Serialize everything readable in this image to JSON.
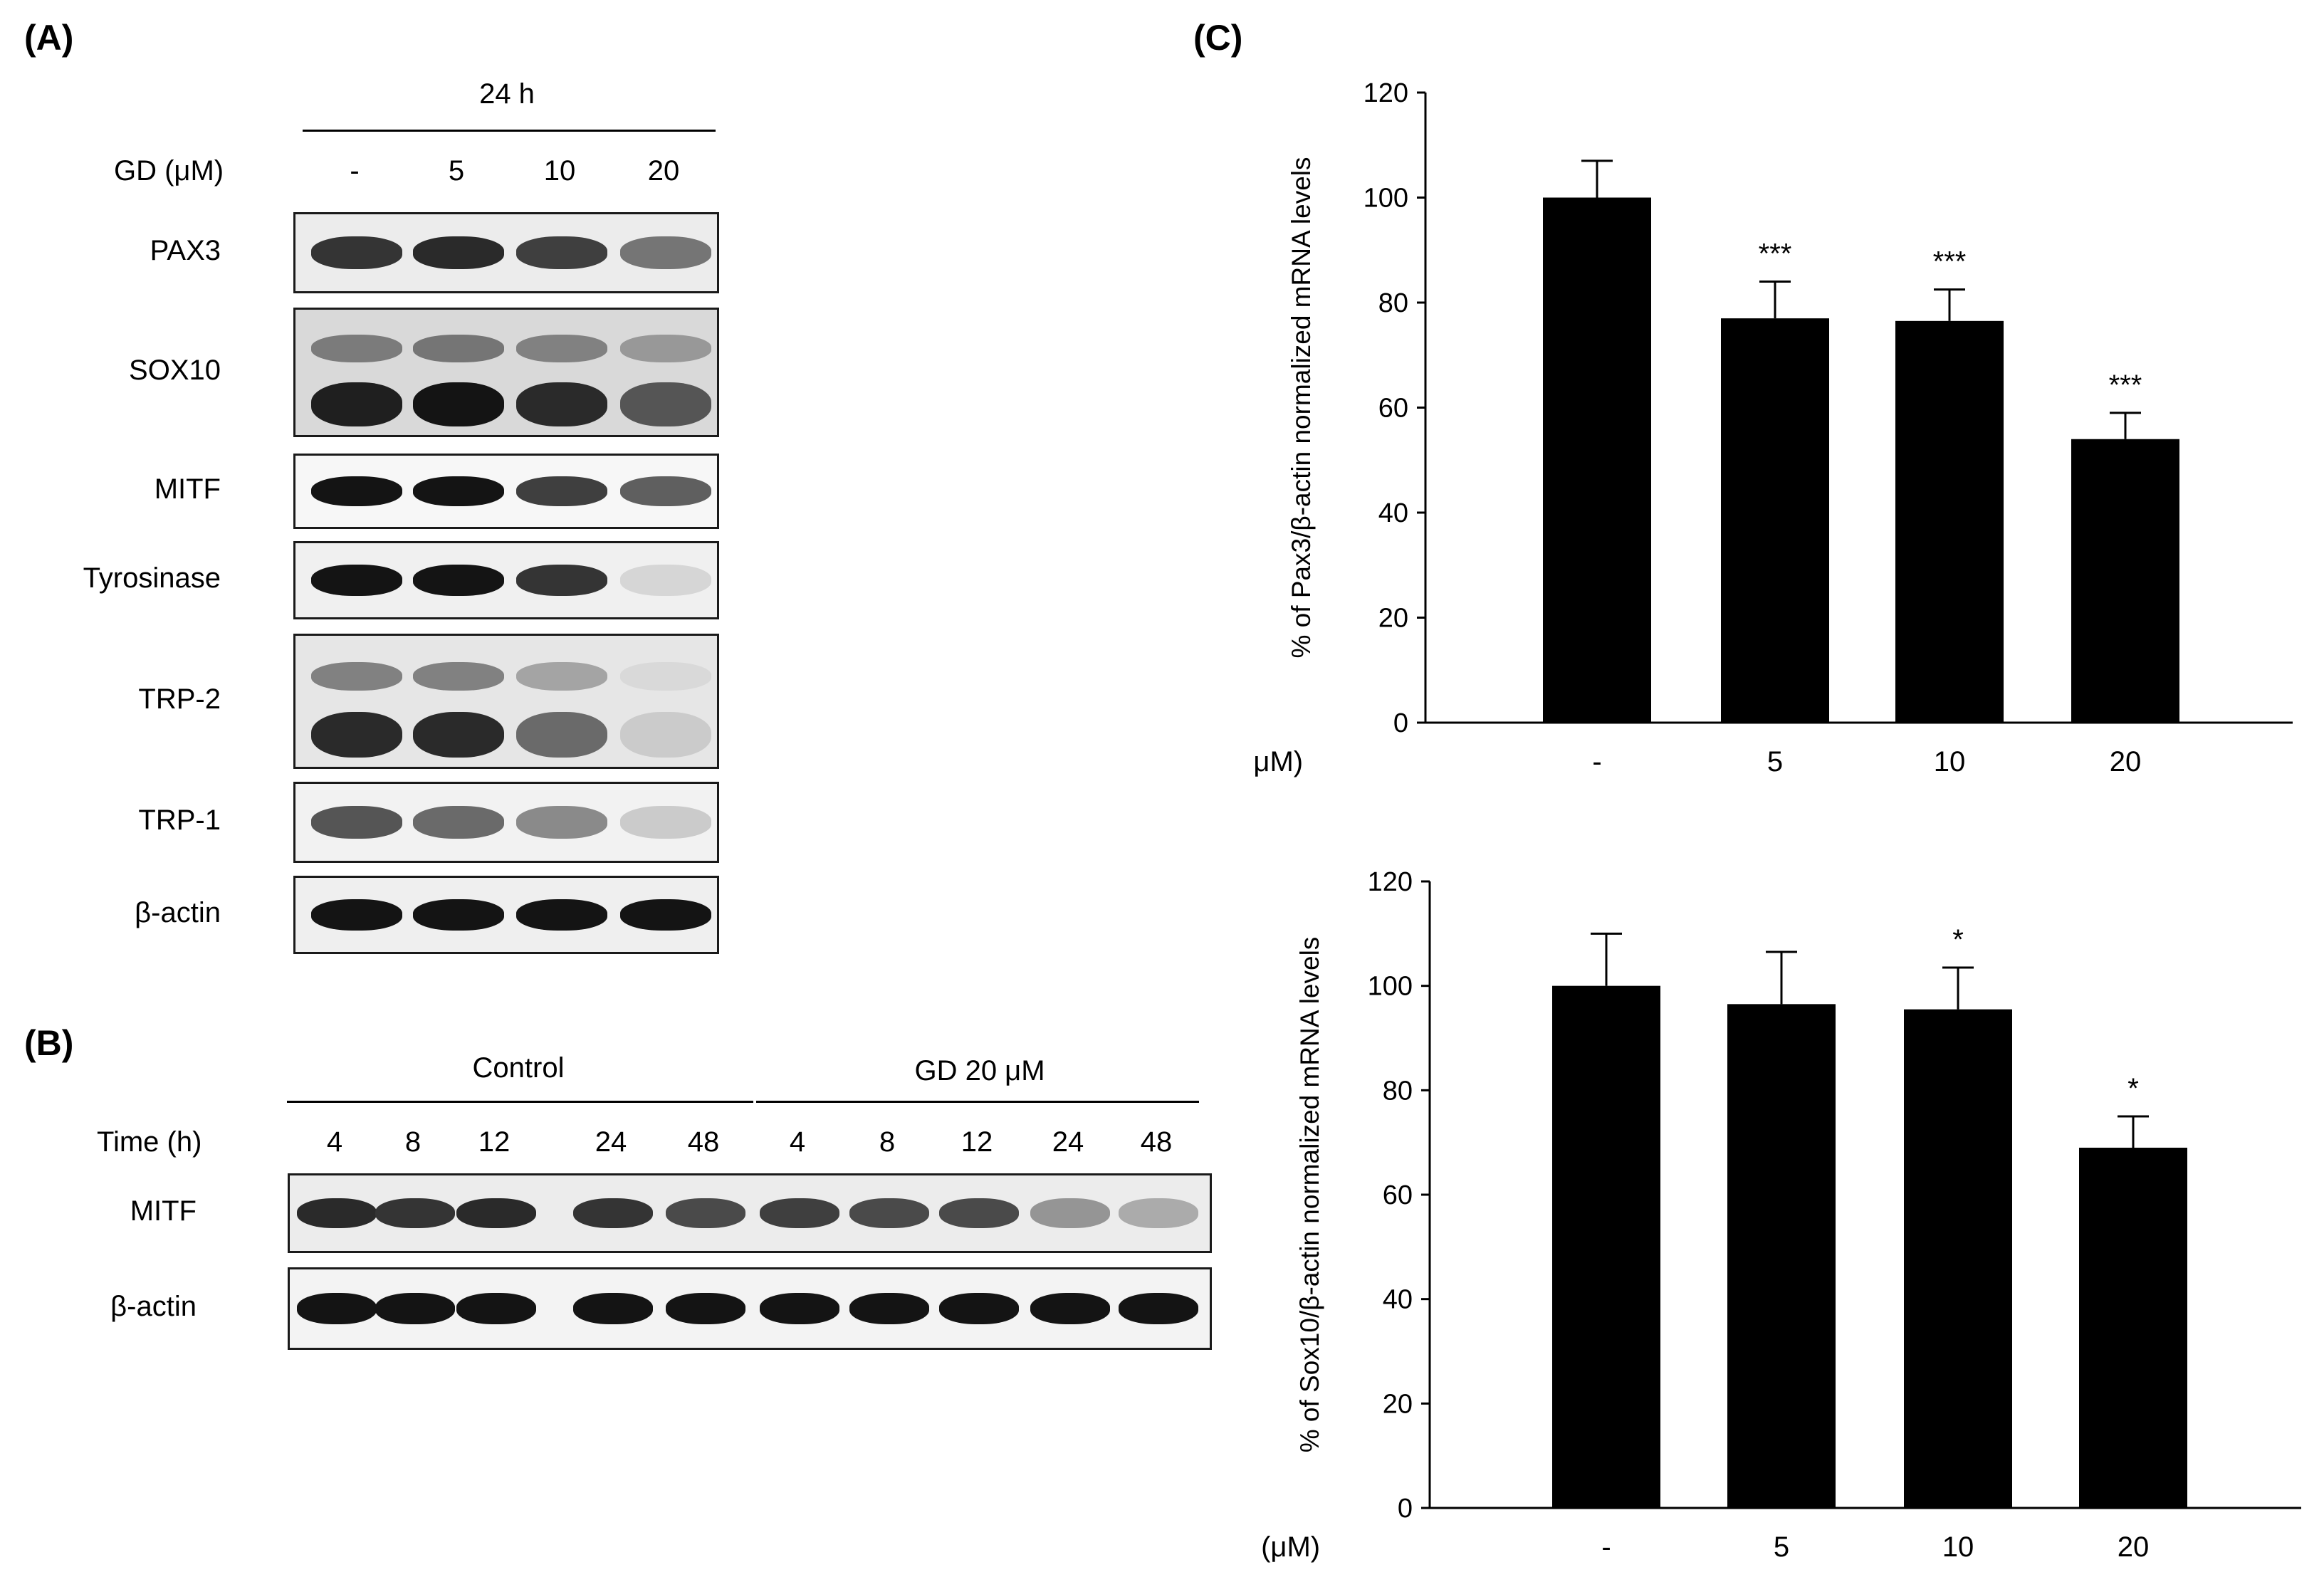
{
  "panel_a": {
    "letter": "(A)",
    "time_header": "24 h",
    "gd_label": "GD (μM)",
    "lanes": [
      "-",
      "5",
      "10",
      "20"
    ],
    "rows": [
      {
        "name": "PAX3",
        "intensity": [
          0.85,
          0.9,
          0.8,
          0.55
        ],
        "bg": "#ececec"
      },
      {
        "name": "SOX10",
        "intensity": [
          0.95,
          1.0,
          0.9,
          0.7
        ],
        "bg": "#d9d9d9"
      },
      {
        "name": "MITF",
        "intensity": [
          1.0,
          1.0,
          0.8,
          0.65
        ],
        "bg": "#f7f7f7"
      },
      {
        "name": "Tyrosinase",
        "intensity": [
          1.0,
          1.0,
          0.85,
          0.1
        ],
        "bg": "#f0f0f0"
      },
      {
        "name": "TRP-2",
        "intensity": [
          0.9,
          0.9,
          0.6,
          0.15
        ],
        "bg": "#e6e6e6"
      },
      {
        "name": "TRP-1",
        "intensity": [
          0.7,
          0.6,
          0.45,
          0.15
        ],
        "bg": "#f2f2f2"
      },
      {
        "name": "β-actin",
        "intensity": [
          1.0,
          1.0,
          1.0,
          1.0
        ],
        "bg": "#efefef"
      }
    ]
  },
  "panel_b": {
    "letter": "(B)",
    "group_control": "Control",
    "group_gd": "GD 20 μM",
    "time_label": "Time (h)",
    "times": [
      "4",
      "8",
      "12",
      "24",
      "48",
      "4",
      "8",
      "12",
      "24",
      "48"
    ],
    "rows": [
      {
        "name": "MITF",
        "intensity": [
          0.9,
          0.85,
          0.9,
          0.85,
          0.75,
          0.8,
          0.75,
          0.75,
          0.4,
          0.3
        ]
      },
      {
        "name": "β-actin",
        "intensity": [
          1,
          1,
          1,
          1,
          1,
          1,
          1,
          1,
          1,
          1
        ]
      }
    ]
  },
  "panel_c": {
    "letter": "(C)",
    "chart_data": [
      {
        "type": "bar",
        "categories": [
          "-",
          "5",
          "10",
          "20"
        ],
        "values": [
          100,
          77,
          76.5,
          54
        ],
        "errors": [
          7,
          7,
          6,
          5
        ],
        "significance": [
          "",
          "***",
          "***",
          "***"
        ],
        "xlabel": "GD (μM)",
        "ylabel": "% of Pax3/β-actin normalized mRNA levels",
        "ylim": [
          0,
          120
        ],
        "yticks": [
          0,
          20,
          40,
          60,
          80,
          100,
          120
        ],
        "grid": false,
        "bar_color": "#000000"
      },
      {
        "type": "bar",
        "categories": [
          "-",
          "5",
          "10",
          "20"
        ],
        "values": [
          100,
          96.5,
          95.5,
          69
        ],
        "errors": [
          10,
          10,
          8,
          6
        ],
        "significance": [
          "",
          "",
          "*",
          "*"
        ],
        "xlabel": "GD (μM)",
        "ylabel": "% of Sox10/β-actin normalized mRNA levels",
        "ylim": [
          0,
          120
        ],
        "yticks": [
          0,
          20,
          40,
          60,
          80,
          100,
          120
        ],
        "grid": false,
        "bar_color": "#000000"
      }
    ]
  }
}
